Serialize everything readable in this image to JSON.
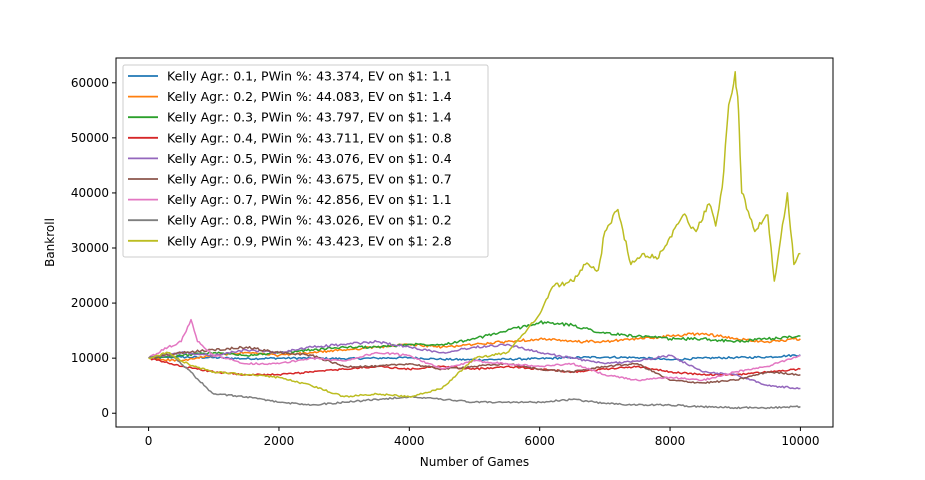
{
  "chart_data": {
    "type": "line",
    "title": "",
    "xlabel": "Number of Games",
    "ylabel": "Bankroll",
    "xlim": [
      -500,
      10500
    ],
    "ylim": [
      -2500,
      64500
    ],
    "xticks": [
      0,
      2000,
      4000,
      6000,
      8000,
      10000
    ],
    "xtick_labels": [
      "0",
      "2000",
      "4000",
      "6000",
      "8000",
      "10000"
    ],
    "yticks": [
      0,
      10000,
      20000,
      30000,
      40000,
      50000,
      60000
    ],
    "ytick_labels": [
      "0",
      "10000",
      "20000",
      "30000",
      "40000",
      "50000",
      "60000"
    ],
    "grid": false,
    "legend_position": "upper-left",
    "series": [
      {
        "name": "Kelly Agr.: 0.1, PWin %: 43.374, EV on $1: 1.1",
        "color": "#1f77b4",
        "x": [
          0,
          500,
          1000,
          1500,
          2000,
          2500,
          3000,
          3500,
          4000,
          4500,
          5000,
          5500,
          6000,
          6500,
          7000,
          7500,
          8000,
          8500,
          9000,
          9500,
          10000
        ],
        "y": [
          10000,
          10200,
          10100,
          9900,
          10000,
          10000,
          9900,
          10000,
          10100,
          9800,
          9700,
          9800,
          9900,
          10100,
          10200,
          10100,
          9700,
          10000,
          10100,
          10200,
          10600
        ]
      },
      {
        "name": "Kelly Agr.: 0.2, PWin %: 44.083, EV on $1: 1.4",
        "color": "#ff7f0e",
        "x": [
          0,
          500,
          1000,
          1500,
          2000,
          2500,
          3000,
          3500,
          4000,
          4500,
          5000,
          5500,
          6000,
          6500,
          7000,
          7500,
          8000,
          8500,
          9000,
          9500,
          10000
        ],
        "y": [
          10000,
          9500,
          10500,
          11000,
          10500,
          11000,
          11500,
          12000,
          12500,
          12000,
          12500,
          13000,
          13500,
          13000,
          13000,
          13500,
          14000,
          14500,
          13500,
          13000,
          13500
        ]
      },
      {
        "name": "Kelly Agr.: 0.3, PWin %: 43.797, EV on $1: 1.4",
        "color": "#2ca02c",
        "x": [
          0,
          500,
          1000,
          1500,
          2000,
          2500,
          3000,
          3500,
          4000,
          4500,
          5000,
          5500,
          6000,
          6500,
          7000,
          7500,
          8000,
          8500,
          9000,
          9500,
          10000
        ],
        "y": [
          10000,
          10500,
          11000,
          10500,
          11000,
          11500,
          12000,
          12000,
          12500,
          12500,
          13500,
          15000,
          16500,
          16000,
          14500,
          14000,
          13500,
          13500,
          13000,
          13500,
          14000
        ]
      },
      {
        "name": "Kelly Agr.: 0.4, PWin %: 43.711, EV on $1: 0.8",
        "color": "#d62728",
        "x": [
          0,
          500,
          1000,
          1500,
          2000,
          2500,
          3000,
          3500,
          4000,
          4500,
          5000,
          5500,
          6000,
          6500,
          7000,
          7500,
          8000,
          8500,
          9000,
          9500,
          10000
        ],
        "y": [
          10000,
          8500,
          7500,
          7000,
          7000,
          7500,
          8000,
          8500,
          8000,
          8500,
          8000,
          8500,
          8000,
          7500,
          8000,
          8500,
          7500,
          7000,
          7000,
          7500,
          8000
        ]
      },
      {
        "name": "Kelly Agr.: 0.5, PWin %: 43.076, EV on $1: 0.4",
        "color": "#9467bd",
        "x": [
          0,
          500,
          1000,
          1500,
          2000,
          2500,
          3000,
          3500,
          4000,
          4500,
          5000,
          5500,
          6000,
          6500,
          7000,
          7500,
          8000,
          8500,
          9000,
          9500,
          10000
        ],
        "y": [
          10000,
          11000,
          10500,
          11500,
          11000,
          12000,
          12500,
          13000,
          12000,
          11000,
          12000,
          12500,
          11000,
          10000,
          9000,
          9500,
          10500,
          7500,
          7000,
          5000,
          4500
        ]
      },
      {
        "name": "Kelly Agr.: 0.6, PWin %: 43.675, EV on $1: 0.7",
        "color": "#8c564b",
        "x": [
          0,
          500,
          1000,
          1500,
          2000,
          2500,
          3000,
          3500,
          4000,
          4500,
          5000,
          5500,
          6000,
          6500,
          7000,
          7500,
          8000,
          8500,
          9000,
          9500,
          10000
        ],
        "y": [
          10000,
          11000,
          11500,
          12000,
          11000,
          10500,
          8500,
          8500,
          9000,
          8000,
          8500,
          9000,
          8000,
          7500,
          8500,
          9000,
          6000,
          5500,
          6000,
          7500,
          7000
        ]
      },
      {
        "name": "Kelly Agr.: 0.7, PWin %: 42.856, EV on $1: 1.1",
        "color": "#e377c2",
        "x": [
          0,
          300,
          500,
          650,
          750,
          1000,
          1500,
          2000,
          2500,
          3000,
          3500,
          4000,
          4500,
          5000,
          5500,
          6000,
          6500,
          7000,
          7500,
          8000,
          8500,
          9000,
          9500,
          10000
        ],
        "y": [
          10000,
          12000,
          13000,
          17000,
          13000,
          10500,
          9000,
          9000,
          10000,
          9500,
          11000,
          10500,
          8000,
          9500,
          9000,
          8500,
          9000,
          7000,
          6000,
          6500,
          6000,
          7500,
          8500,
          10500
        ]
      },
      {
        "name": "Kelly Agr.: 0.8, PWin %: 43.026, EV on $1: 0.2",
        "color": "#7f7f7f",
        "x": [
          0,
          300,
          600,
          900,
          1000,
          1500,
          2000,
          2500,
          3000,
          3500,
          4000,
          4500,
          5000,
          5500,
          6000,
          6500,
          7000,
          7500,
          8000,
          8500,
          9000,
          9500,
          10000
        ],
        "y": [
          10000,
          11000,
          8000,
          4500,
          3500,
          3000,
          2000,
          1500,
          2000,
          2500,
          3000,
          2500,
          2000,
          2000,
          2000,
          2500,
          1800,
          1500,
          1500,
          1200,
          1000,
          1000,
          1200
        ]
      },
      {
        "name": "Kelly Agr.: 0.9, PWin %: 43.423, EV on $1: 2.8",
        "color": "#bcbd22",
        "x": [
          0,
          300,
          500,
          700,
          1000,
          1500,
          2000,
          2500,
          3000,
          3500,
          4000,
          4500,
          5000,
          5500,
          5800,
          6000,
          6200,
          6500,
          6700,
          6900,
          7000,
          7200,
          7400,
          7600,
          7800,
          8000,
          8200,
          8400,
          8600,
          8700,
          8800,
          8900,
          9000,
          9050,
          9100,
          9300,
          9500,
          9600,
          9700,
          9800,
          9900,
          10000
        ],
        "y": [
          10000,
          11000,
          9500,
          8500,
          7500,
          7000,
          6500,
          5000,
          3000,
          3500,
          3000,
          4500,
          10000,
          11000,
          15000,
          18000,
          23000,
          24000,
          27000,
          26000,
          33000,
          37000,
          27000,
          29000,
          28000,
          32000,
          36000,
          33000,
          38000,
          34000,
          41000,
          56000,
          62000,
          55000,
          40000,
          33000,
          36000,
          24000,
          32000,
          40000,
          27000,
          29000
        ]
      }
    ]
  }
}
